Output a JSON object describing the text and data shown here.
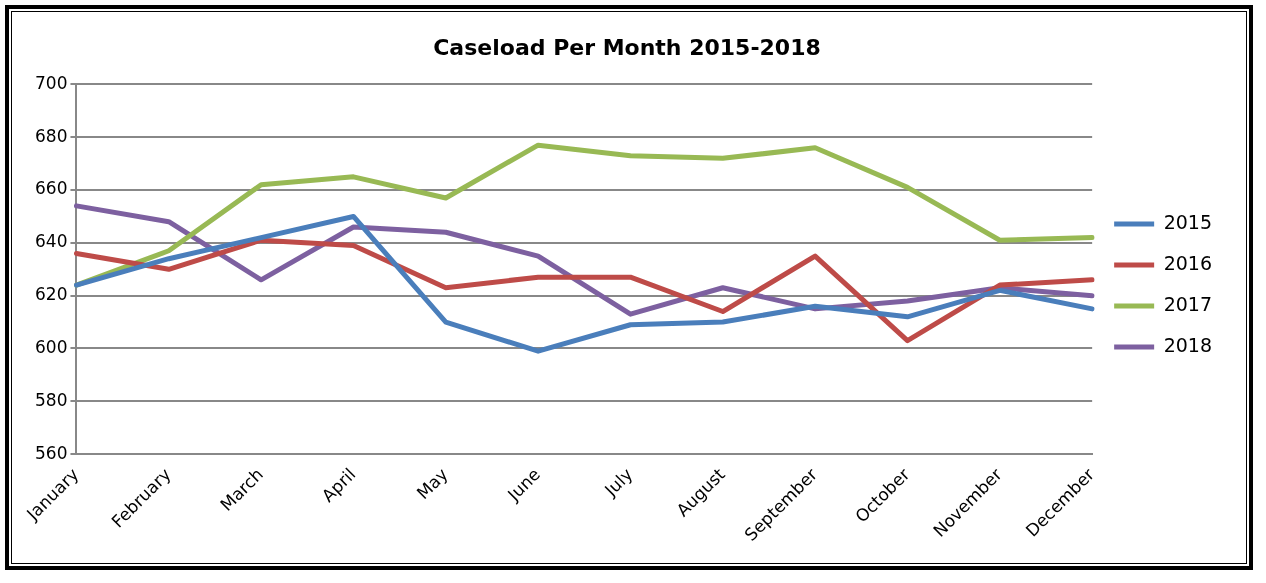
{
  "chart_data": {
    "type": "line",
    "title": "Caseload Per Month 2015-2018",
    "categories": [
      "January",
      "February",
      "March",
      "April",
      "May",
      "June",
      "July",
      "August",
      "September",
      "October",
      "November",
      "December"
    ],
    "series": [
      {
        "name": "2015",
        "color": "#4a7ebb",
        "values": [
          624,
          634,
          642,
          650,
          610,
          599,
          609,
          610,
          616,
          612,
          622,
          615
        ]
      },
      {
        "name": "2016",
        "color": "#be4b48",
        "values": [
          636,
          630,
          641,
          639,
          623,
          627,
          627,
          614,
          635,
          603,
          624,
          626
        ]
      },
      {
        "name": "2017",
        "color": "#98b954",
        "values": [
          624,
          637,
          662,
          665,
          657,
          677,
          673,
          672,
          676,
          661,
          641,
          642
        ]
      },
      {
        "name": "2018",
        "color": "#7d60a0",
        "values": [
          654,
          648,
          626,
          646,
          644,
          635,
          613,
          623,
          615,
          618,
          623,
          620
        ]
      }
    ],
    "ylim": [
      560,
      700
    ],
    "yticks": [
      560,
      580,
      600,
      620,
      640,
      660,
      680,
      700
    ],
    "grid": "y",
    "legend": "right",
    "marker": "none",
    "line_style": "solid"
  }
}
